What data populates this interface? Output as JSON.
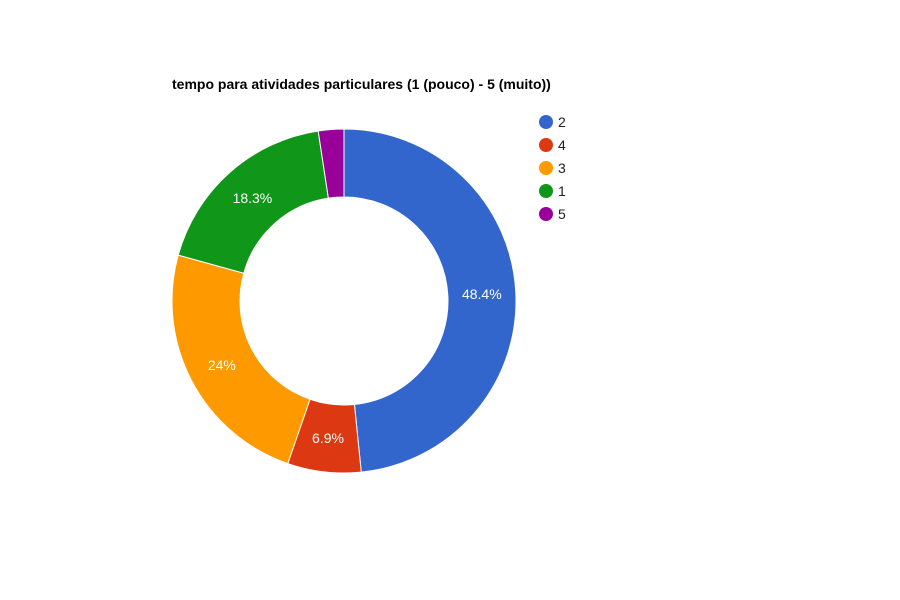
{
  "chart_data": {
    "type": "pie",
    "donut": true,
    "title": "tempo para atividades particulares (1 (pouco) - 5 (muito))",
    "legend_position": "right",
    "slices": [
      {
        "label": "2",
        "value": 48.4,
        "display": "48.4%",
        "color": "#3366cc"
      },
      {
        "label": "4",
        "value": 6.9,
        "display": "6.9%",
        "color": "#dc3912"
      },
      {
        "label": "3",
        "value": 24.0,
        "display": "24%",
        "color": "#ff9900"
      },
      {
        "label": "1",
        "value": 18.3,
        "display": "18.3%",
        "color": "#109618"
      },
      {
        "label": "5",
        "value": 2.4,
        "display": "",
        "color": "#990099"
      }
    ]
  }
}
